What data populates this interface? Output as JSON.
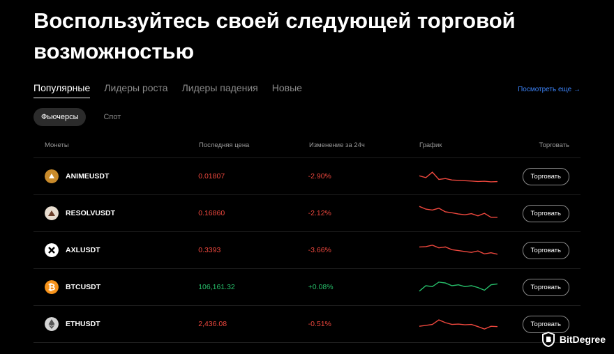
{
  "heading": "Воспользуйтесь своей следующей торговой возможностью",
  "tabs": [
    "Популярные",
    "Лидеры роста",
    "Лидеры падения",
    "Новые"
  ],
  "see_more": "Посмотреть еще →",
  "subtabs": [
    "Фьючерсы",
    "Спот"
  ],
  "columns": {
    "coins": "Монеты",
    "price": "Последняя цена",
    "change": "Изменение за 24ч",
    "chart": "График",
    "trade": "Торговать"
  },
  "rows": [
    {
      "symbol": "ANIMEUSDT",
      "price": "0.01807",
      "change": "-2.90%",
      "trend": "down",
      "icon": "anime-coin-icon",
      "icon_color": "#c98b2b",
      "spark": [
        0.55,
        0.65,
        0.35,
        0.75,
        0.7,
        0.78,
        0.8,
        0.82,
        0.84,
        0.86,
        0.85,
        0.88,
        0.87
      ],
      "button": "Торговать"
    },
    {
      "symbol": "RESOLVUSDT",
      "price": "0.16860",
      "change": "-2.12%",
      "trend": "down",
      "icon": "resolv-coin-icon",
      "icon_color": "#d6c7b5",
      "spark": [
        0.2,
        0.35,
        0.4,
        0.3,
        0.5,
        0.55,
        0.62,
        0.66,
        0.6,
        0.72,
        0.58,
        0.8,
        0.8
      ],
      "button": "Торговать"
    },
    {
      "symbol": "AXLUSDT",
      "price": "0.3393",
      "change": "-3.66%",
      "trend": "down",
      "icon": "axl-coin-icon",
      "icon_color": "#ffffff",
      "spark": [
        0.4,
        0.38,
        0.3,
        0.45,
        0.4,
        0.55,
        0.6,
        0.65,
        0.7,
        0.62,
        0.78,
        0.72,
        0.8
      ],
      "button": "Торговать"
    },
    {
      "symbol": "BTCUSDT",
      "price": "106,161.32",
      "change": "+0.08%",
      "trend": "up",
      "icon": "bitcoin-icon",
      "icon_color": "#f7931a",
      "spark": [
        0.8,
        0.5,
        0.55,
        0.3,
        0.35,
        0.5,
        0.45,
        0.55,
        0.5,
        0.6,
        0.75,
        0.45,
        0.4
      ],
      "button": "Торговать"
    },
    {
      "symbol": "ETHUSDT",
      "price": "2,436.08",
      "change": "-0.51%",
      "trend": "down",
      "icon": "ethereum-icon",
      "icon_color": "#c8c8c8",
      "spark": [
        0.7,
        0.65,
        0.6,
        0.35,
        0.5,
        0.6,
        0.58,
        0.62,
        0.6,
        0.72,
        0.85,
        0.7,
        0.72
      ],
      "button": "Торговать"
    }
  ],
  "watermark": "BitDegree",
  "colors": {
    "negative": "#f0483e",
    "positive": "#27c06b",
    "link": "#3b82f6"
  }
}
